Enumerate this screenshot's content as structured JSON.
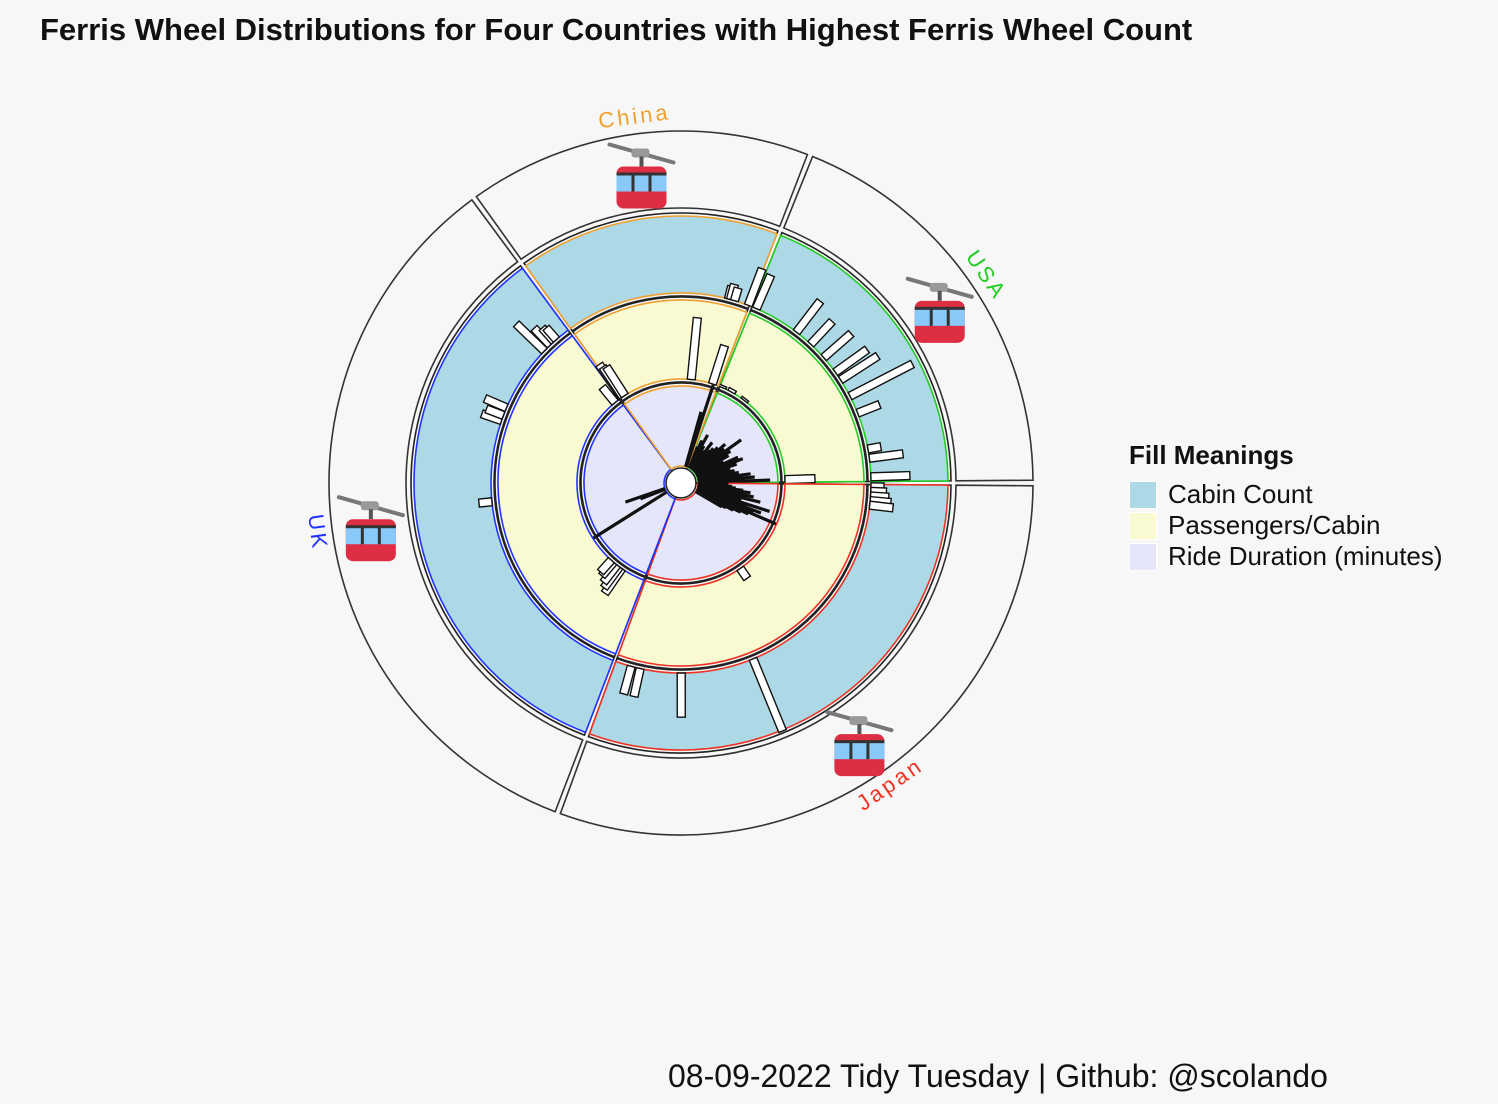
{
  "title": "Ferris Wheel Distributions for Four Countries with Highest Ferris Wheel Count",
  "caption": "08-09-2022 Tidy Tuesday | Github: @scolando",
  "legend": {
    "title": "Fill Meanings",
    "items": [
      {
        "label": "Cabin Count",
        "color": "#add8e6"
      },
      {
        "label": "Passengers/Cabin",
        "color": "#fafad2"
      },
      {
        "label": "Ride Duration (minutes)",
        "color": "#e6e6fa"
      }
    ]
  },
  "colors": {
    "background": "#f7f7f7",
    "China": "#f0a030",
    "USA": "#22cc22",
    "Japan": "#ee3322",
    "UK": "#2233ff",
    "cabin": "#add8e6",
    "passengers": "#fafad2",
    "duration": "#e6e6fa"
  },
  "icon": "aerial-tramway-icon",
  "chart_data": {
    "type": "circular-bar",
    "rings": [
      "Ride Duration (minutes)",
      "Passengers/Cabin",
      "Cabin Count"
    ],
    "countries": [
      {
        "name": "USA",
        "start_deg": 21.5,
        "end_deg": 90,
        "cabin_count": [
          28,
          0,
          0,
          0,
          0,
          30,
          0,
          24,
          0,
          28,
          0,
          30,
          34,
          0,
          54,
          0,
          18,
          0,
          0,
          0,
          10,
          26,
          0,
          30
        ],
        "passengers_per_cabin": [
          2,
          0,
          3,
          0,
          0,
          2,
          0,
          0,
          0,
          0,
          0,
          0,
          0,
          0,
          0,
          0,
          0,
          0,
          0,
          0,
          0,
          0,
          0,
          30
        ],
        "ride_duration": [
          12,
          16,
          20,
          14,
          12,
          18,
          14,
          16,
          18,
          22,
          20,
          30,
          22,
          20,
          16,
          24,
          26,
          22,
          18,
          20,
          22,
          28,
          30,
          38
        ]
      },
      {
        "name": "Japan",
        "start_deg": 90,
        "end_deg": 200.5,
        "cabin_count": [
          10,
          12,
          14,
          16,
          18,
          0,
          0,
          0,
          0,
          0,
          0,
          0,
          0,
          0,
          0,
          0,
          0,
          0,
          0,
          0,
          0,
          0,
          0,
          0,
          0,
          0,
          0,
          0,
          0,
          0,
          0,
          0,
          0,
          0,
          0,
          0,
          0,
          0,
          0,
          0,
          0,
          0,
          0,
          0,
          0,
          0,
          0,
          0,
          60,
          0,
          0,
          0,
          0,
          0,
          0,
          0,
          0,
          0,
          0,
          0,
          0,
          0,
          0,
          0,
          34,
          0,
          0,
          0,
          0,
          0,
          0,
          0,
          0,
          22,
          0,
          22,
          0,
          0,
          0
        ],
        "passengers_per_cabin": [
          0,
          0,
          0,
          0,
          0,
          0,
          0,
          0,
          0,
          0,
          0,
          0,
          0,
          0,
          0,
          0,
          0,
          0,
          0,
          0,
          0,
          0,
          0,
          0,
          0,
          0,
          0,
          0,
          0,
          0,
          0,
          0,
          0,
          0,
          0,
          0,
          0,
          0,
          0,
          12,
          0,
          0,
          0,
          0,
          0,
          0,
          0,
          0,
          0,
          0,
          0,
          0,
          0,
          0,
          0,
          0,
          0,
          0,
          0,
          0,
          0,
          0,
          0,
          0,
          0,
          0,
          0,
          0,
          0,
          0,
          0,
          0,
          0,
          0,
          0,
          0,
          0,
          0,
          0
        ],
        "ride_duration": [
          16,
          14,
          18,
          20,
          24,
          28,
          22,
          30,
          26,
          34,
          20,
          24,
          40,
          28,
          36,
          32,
          46,
          30,
          26,
          22,
          18,
          16,
          0,
          0,
          0,
          0,
          0,
          0,
          0,
          0,
          0,
          0,
          0,
          0,
          0,
          0,
          0,
          0,
          0,
          0,
          0,
          0,
          0,
          0,
          0,
          0,
          0,
          0,
          0,
          0,
          0,
          0,
          0,
          0,
          0,
          0,
          0,
          0,
          0,
          0,
          0,
          0,
          0,
          0,
          0,
          0,
          0,
          0,
          0,
          0,
          0,
          0,
          0,
          0,
          0,
          0,
          0,
          0,
          0
        ]
      },
      {
        "name": "UK",
        "start_deg": 200.5,
        "end_deg": 324,
        "cabin_count": [
          0,
          0,
          0,
          0,
          0,
          0,
          0,
          0,
          0,
          0,
          0,
          0,
          0,
          0,
          0,
          0,
          0,
          0,
          0,
          0,
          0,
          0,
          0,
          0,
          0,
          0,
          0,
          0,
          0,
          0,
          0,
          0,
          0,
          0,
          0,
          0,
          0,
          0,
          0,
          0,
          0,
          0,
          0,
          0,
          0,
          0,
          0,
          0,
          0,
          0,
          0,
          0,
          0,
          0,
          0,
          0,
          0,
          0,
          0,
          0,
          0,
          0,
          0,
          0,
          0,
          0,
          0,
          0,
          0,
          0,
          0,
          0,
          0,
          0,
          0,
          0,
          10,
          0,
          0,
          0,
          0,
          0,
          0,
          0,
          0,
          0,
          0,
          0,
          0,
          0,
          0,
          0,
          0,
          0,
          0,
          0,
          0,
          0,
          0,
          0,
          0,
          0,
          0,
          0,
          0,
          0,
          16,
          0,
          14,
          0,
          0,
          18,
          0,
          0,
          0,
          0,
          0,
          0,
          0,
          0,
          0,
          0,
          0,
          0,
          0,
          0,
          0,
          0,
          0,
          0,
          0,
          0,
          0,
          0,
          0,
          0,
          30,
          0,
          0,
          18,
          0,
          14,
          12,
          0,
          0,
          0,
          0,
          0
        ],
        "passengers_per_cabin": [
          0,
          0,
          0,
          0,
          0,
          0,
          0,
          0,
          0,
          0,
          0,
          0,
          0,
          0,
          0,
          0,
          30,
          0,
          26,
          0,
          22,
          0,
          0,
          18,
          0,
          16,
          0,
          0,
          0,
          0,
          0,
          0,
          0,
          0,
          0,
          0,
          0,
          0,
          0,
          0,
          0,
          0,
          0,
          0,
          0,
          0,
          0,
          0,
          0,
          0,
          0,
          0,
          0,
          0,
          0,
          0,
          0,
          0,
          0,
          0,
          0,
          0,
          0,
          0,
          0,
          0,
          0,
          0,
          0,
          0,
          0,
          0,
          0,
          0,
          0,
          0,
          0,
          0,
          0,
          0,
          0,
          0,
          0,
          0,
          0,
          0,
          0,
          0,
          0,
          0,
          0,
          0,
          0,
          0,
          0,
          0,
          0,
          0,
          0,
          0,
          0,
          0,
          0,
          0,
          0,
          0,
          0,
          0,
          0,
          0,
          0,
          0,
          0,
          0,
          0,
          0,
          0,
          0,
          0,
          0,
          0,
          0,
          0,
          0,
          0,
          0,
          0,
          0,
          0,
          0,
          0,
          0,
          0,
          0,
          0,
          0,
          0,
          0,
          0,
          0,
          0,
          0,
          0,
          0,
          20,
          0,
          0,
          0
        ],
        "ride_duration": [
          0,
          0,
          0,
          0,
          0,
          0,
          0,
          0,
          0,
          0,
          0,
          0,
          0,
          0,
          0,
          0,
          0,
          0,
          0,
          0,
          0,
          0,
          0,
          0,
          0,
          0,
          0,
          0,
          0,
          0,
          0,
          0,
          0,
          0,
          0,
          0,
          0,
          0,
          0,
          0,
          0,
          0,
          0,
          0,
          60,
          0,
          0,
          0,
          0,
          0,
          0,
          0,
          0,
          0,
          0,
          0,
          0,
          14,
          0,
          0,
          22,
          0,
          0,
          0,
          0,
          0,
          0,
          0,
          0,
          0,
          0,
          0,
          0,
          0,
          0,
          0,
          0,
          0,
          0,
          0,
          0,
          0,
          0,
          0,
          0,
          0,
          0,
          0,
          0,
          0,
          0,
          0,
          0,
          0,
          0,
          0,
          0,
          0,
          0,
          0,
          0,
          0,
          0,
          0,
          0,
          0,
          0,
          0,
          0,
          0,
          0,
          0,
          0,
          0,
          0,
          0,
          0,
          0,
          0,
          0,
          0,
          0,
          0,
          0,
          0,
          0,
          0,
          0,
          0,
          0,
          0,
          0,
          0,
          0,
          0,
          0,
          0,
          0,
          0,
          0,
          0,
          0,
          0,
          0,
          0,
          0,
          0,
          0
        ]
      },
      {
        "name": "China",
        "start_deg": 324,
        "end_deg": 381.5,
        "cabin_count": [
          0,
          0,
          0,
          0,
          0,
          0,
          0,
          0,
          0,
          0,
          0,
          0,
          0,
          0,
          0,
          0,
          0,
          0,
          0,
          0,
          0,
          0,
          0,
          0,
          0,
          0,
          0,
          0,
          0,
          0,
          0,
          0,
          0,
          0,
          0,
          0,
          0,
          0,
          0,
          0,
          0,
          0,
          0,
          0,
          0,
          0,
          0,
          0,
          0,
          0,
          0,
          0,
          0,
          0,
          0,
          0,
          0,
          0,
          0,
          0,
          0,
          0,
          0,
          0,
          0,
          0,
          0,
          0,
          0,
          0,
          0,
          0,
          0,
          0,
          0,
          0,
          0,
          0,
          0,
          10,
          12,
          0,
          10,
          0,
          0,
          0,
          0,
          0,
          0,
          30
        ],
        "passengers_per_cabin": [
          0,
          40,
          36,
          0,
          34,
          0,
          0,
          0,
          0,
          0,
          0,
          0,
          0,
          0,
          0,
          0,
          0,
          0,
          0,
          0,
          0,
          0,
          0,
          0,
          0,
          0,
          0,
          0,
          0,
          0,
          0,
          0,
          0,
          0,
          0,
          0,
          0,
          0,
          0,
          0,
          0,
          0,
          0,
          0,
          0,
          0,
          0,
          0,
          0,
          0,
          0,
          0,
          0,
          0,
          0,
          0,
          0,
          0,
          0,
          0,
          0,
          0,
          0,
          0,
          0,
          62,
          0,
          0,
          0,
          0,
          0,
          0,
          0,
          0,
          0,
          0,
          0,
          0,
          0,
          0,
          0,
          0,
          0,
          0,
          40,
          0,
          0,
          0,
          0,
          0
        ],
        "ride_duration": [
          0,
          0,
          0,
          0,
          0,
          0,
          0,
          0,
          0,
          0,
          0,
          0,
          0,
          0,
          0,
          0,
          0,
          0,
          0,
          0,
          0,
          0,
          0,
          0,
          0,
          0,
          0,
          0,
          0,
          0,
          0,
          0,
          0,
          0,
          0,
          0,
          0,
          0,
          0,
          0,
          0,
          0,
          0,
          0,
          0,
          0,
          0,
          0,
          0,
          0,
          0,
          0,
          0,
          0,
          0,
          0,
          0,
          0,
          0,
          0,
          0,
          0,
          0,
          0,
          0,
          0,
          0,
          0,
          0,
          0,
          0,
          0,
          0,
          0,
          0,
          0,
          0,
          0,
          0,
          0,
          0,
          30,
          0,
          0,
          0,
          46,
          0,
          0,
          0,
          0
        ]
      }
    ]
  }
}
